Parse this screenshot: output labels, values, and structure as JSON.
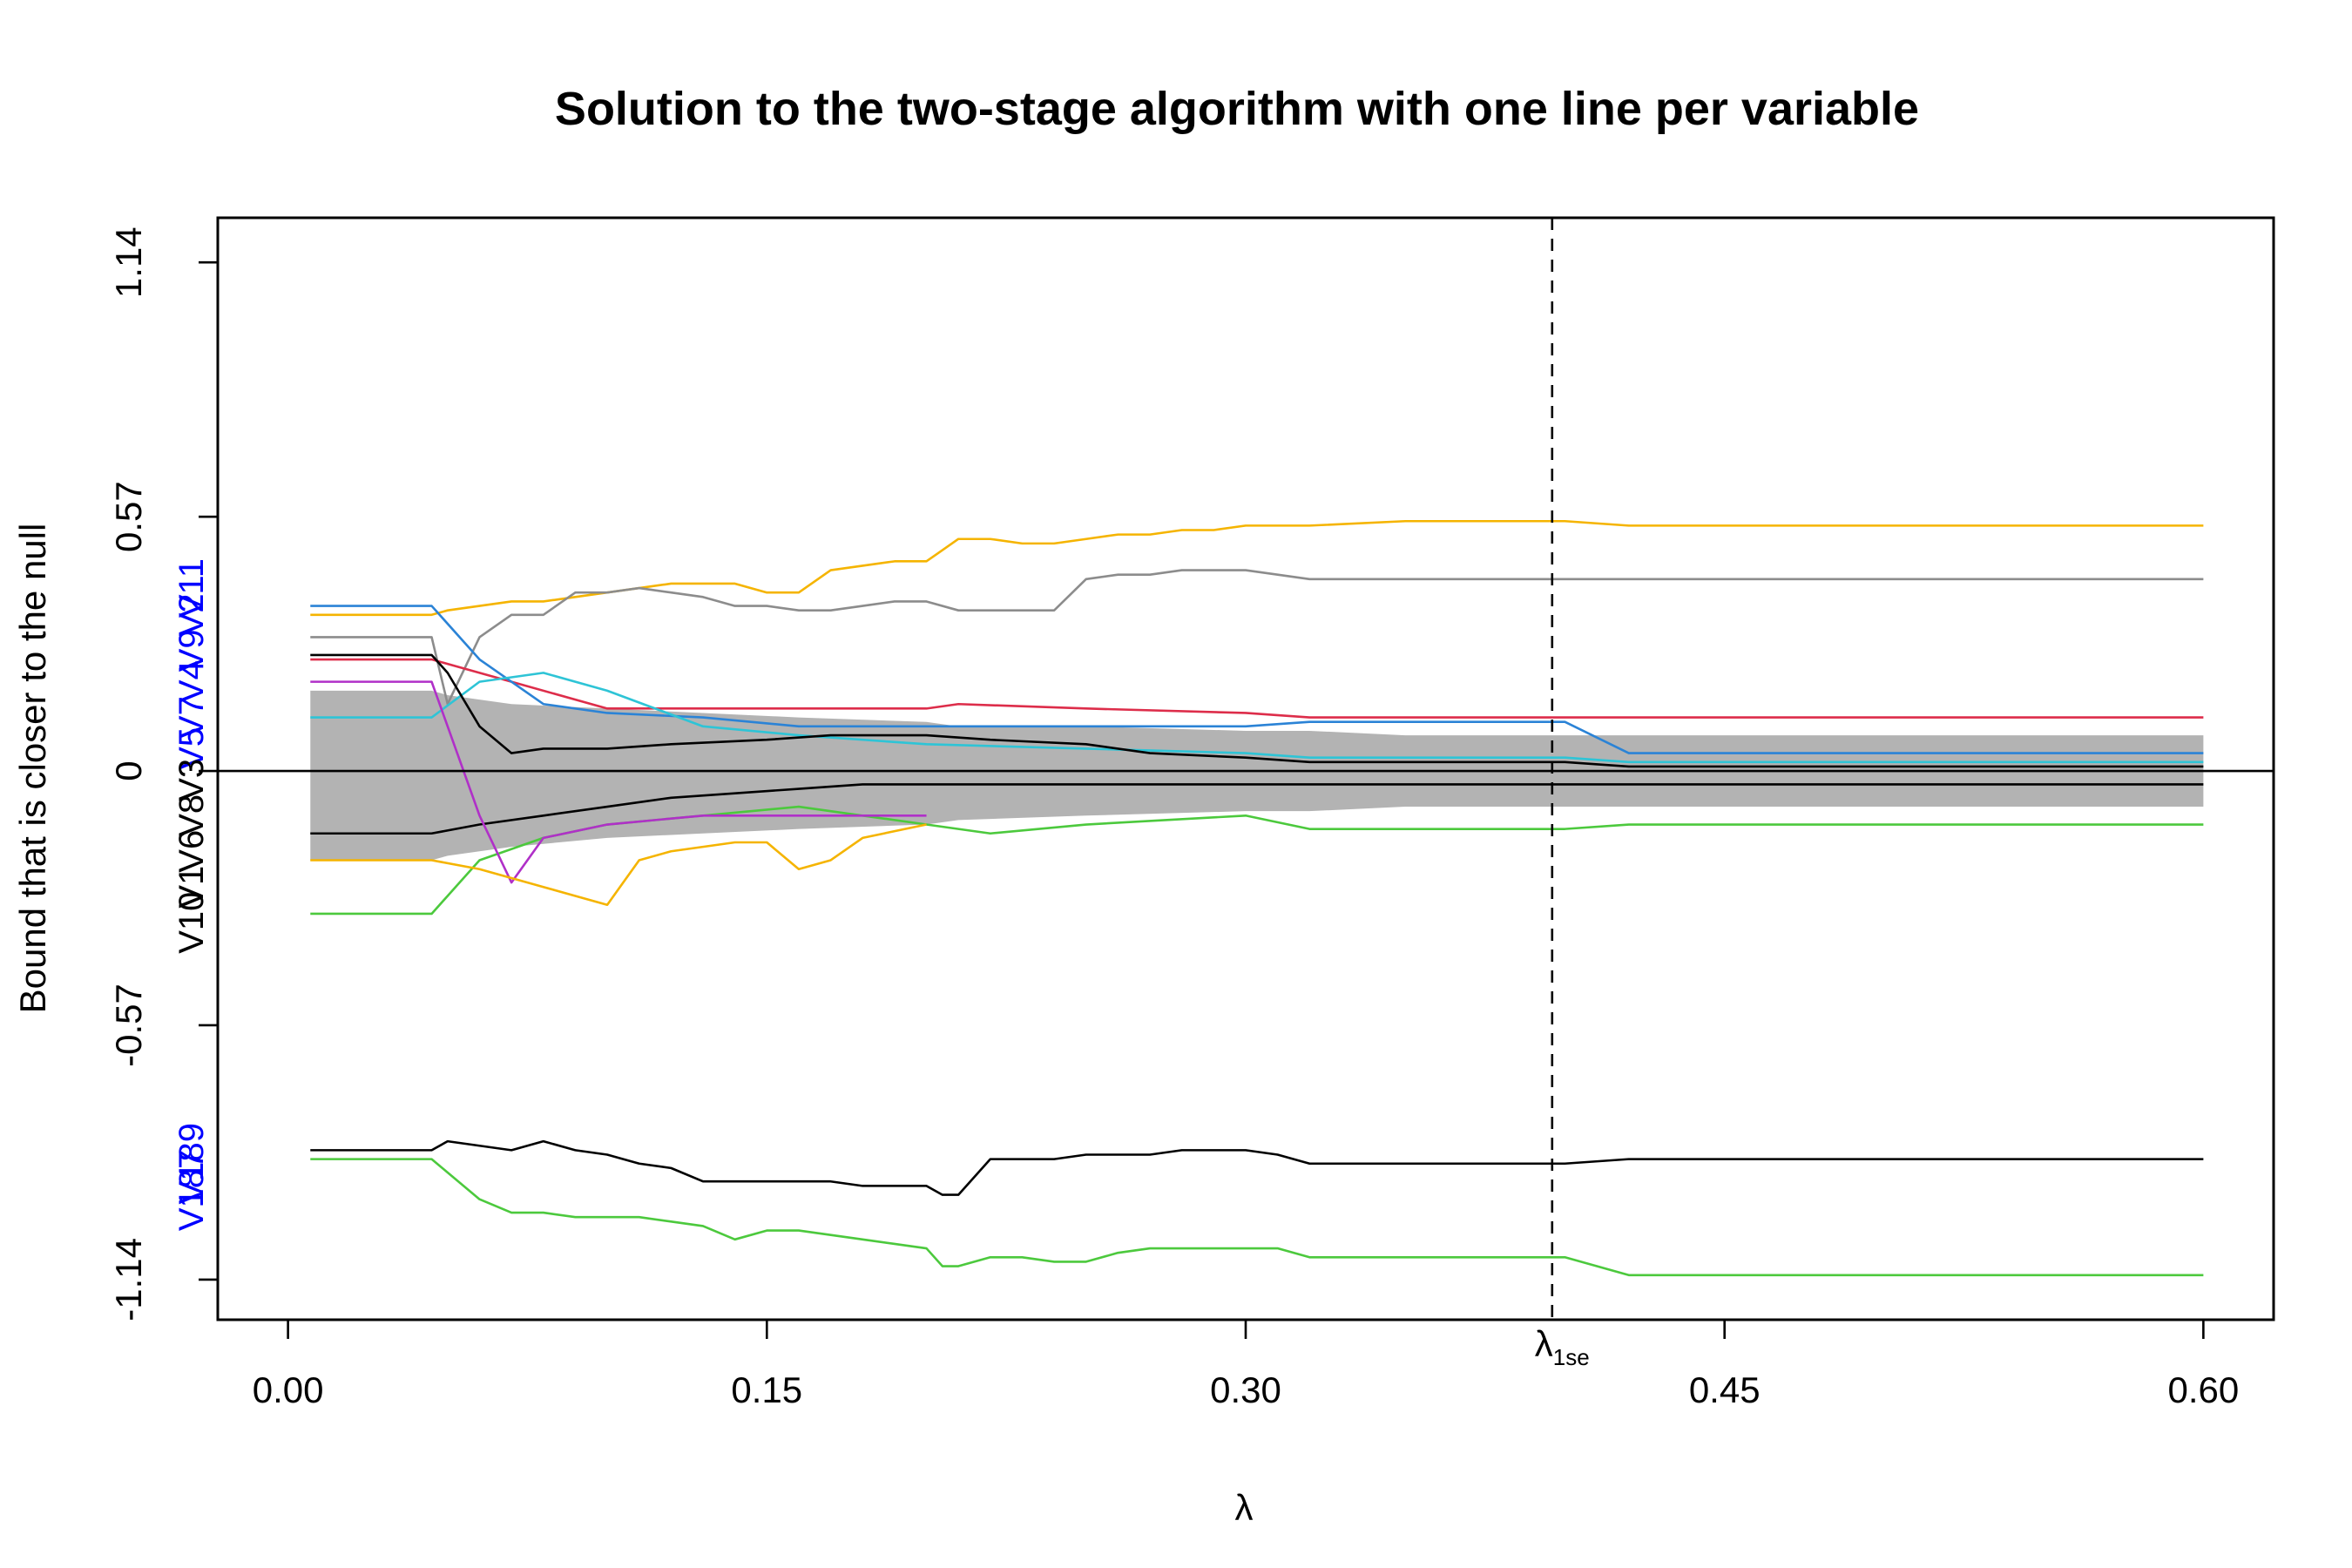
{
  "chart_data": {
    "type": "line",
    "title": "Solution to the two-stage algorithm with one line per variable",
    "xlabel": "λ",
    "ylabel": "Bound that is closer to the null",
    "xlim": [
      -0.022,
      0.622
    ],
    "ylim": [
      -1.23,
      1.24
    ],
    "x_ticks": [
      {
        "value": 0.0,
        "label": "0.00"
      },
      {
        "value": 0.15,
        "label": "0.15"
      },
      {
        "value": 0.3,
        "label": "0.30"
      },
      {
        "value": 0.45,
        "label": "0.45"
      },
      {
        "value": 0.6,
        "label": "0.60"
      }
    ],
    "y_ticks": [
      {
        "value": -1.14,
        "label": "-1.14"
      },
      {
        "value": -0.57,
        "label": "-0.57"
      },
      {
        "value": 0,
        "label": "0"
      },
      {
        "value": 0.57,
        "label": "0.57"
      },
      {
        "value": 1.14,
        "label": "1.14"
      }
    ],
    "vline": {
      "x": 0.396,
      "label": "λ",
      "label_sub": "1se"
    },
    "hline": {
      "y": 0
    },
    "band": {
      "x": [
        0.007,
        0.045,
        0.05,
        0.07,
        0.1,
        0.13,
        0.16,
        0.2,
        0.21,
        0.25,
        0.3,
        0.32,
        0.35,
        0.4,
        0.42,
        0.5,
        0.6
      ],
      "upper": [
        0.18,
        0.18,
        0.17,
        0.15,
        0.14,
        0.13,
        0.12,
        0.11,
        0.1,
        0.1,
        0.09,
        0.09,
        0.08,
        0.08,
        0.08,
        0.08,
        0.08
      ],
      "lower": [
        -0.2,
        -0.2,
        -0.19,
        -0.17,
        -0.15,
        -0.14,
        -0.13,
        -0.12,
        -0.11,
        -0.1,
        -0.09,
        -0.09,
        -0.08,
        -0.08,
        -0.08,
        -0.08,
        -0.08
      ]
    },
    "series": [
      {
        "color": "#f5b400",
        "x": [
          0.007,
          0.045,
          0.05,
          0.06,
          0.07,
          0.08,
          0.09,
          0.1,
          0.11,
          0.12,
          0.13,
          0.14,
          0.15,
          0.16,
          0.17,
          0.18,
          0.19,
          0.2,
          0.21,
          0.22,
          0.23,
          0.24,
          0.25,
          0.26,
          0.27,
          0.28,
          0.29,
          0.3,
          0.31,
          0.32,
          0.35,
          0.4,
          0.42,
          0.5,
          0.6
        ],
        "y": [
          0.35,
          0.35,
          0.36,
          0.37,
          0.38,
          0.38,
          0.39,
          0.4,
          0.41,
          0.42,
          0.42,
          0.42,
          0.4,
          0.4,
          0.45,
          0.46,
          0.47,
          0.47,
          0.52,
          0.52,
          0.51,
          0.51,
          0.52,
          0.53,
          0.53,
          0.54,
          0.54,
          0.55,
          0.55,
          0.55,
          0.56,
          0.56,
          0.55,
          0.55,
          0.55
        ]
      },
      {
        "color": "#8c8c8c",
        "x": [
          0.007,
          0.045,
          0.05,
          0.06,
          0.07,
          0.08,
          0.09,
          0.1,
          0.11,
          0.12,
          0.13,
          0.14,
          0.15,
          0.16,
          0.17,
          0.18,
          0.19,
          0.2,
          0.21,
          0.22,
          0.23,
          0.24,
          0.25,
          0.26,
          0.27,
          0.28,
          0.29,
          0.3,
          0.31,
          0.32,
          0.35,
          0.4,
          0.42,
          0.5,
          0.6
        ],
        "y": [
          0.3,
          0.3,
          0.15,
          0.3,
          0.35,
          0.35,
          0.4,
          0.4,
          0.41,
          0.4,
          0.39,
          0.37,
          0.37,
          0.36,
          0.36,
          0.37,
          0.38,
          0.38,
          0.36,
          0.36,
          0.36,
          0.36,
          0.43,
          0.44,
          0.44,
          0.45,
          0.45,
          0.45,
          0.44,
          0.43,
          0.43,
          0.43,
          0.43,
          0.43,
          0.43
        ]
      },
      {
        "color": "#dd2d4a",
        "x": [
          0.007,
          0.045,
          0.07,
          0.1,
          0.13,
          0.16,
          0.2,
          0.21,
          0.25,
          0.3,
          0.32,
          0.4,
          0.42,
          0.5,
          0.6
        ],
        "y": [
          0.25,
          0.25,
          0.2,
          0.14,
          0.14,
          0.14,
          0.14,
          0.15,
          0.14,
          0.13,
          0.12,
          0.12,
          0.12,
          0.12,
          0.12
        ]
      },
      {
        "color": "#2b83d6",
        "x": [
          0.007,
          0.045,
          0.06,
          0.08,
          0.1,
          0.13,
          0.16,
          0.2,
          0.25,
          0.3,
          0.32,
          0.4,
          0.42,
          0.5,
          0.6
        ],
        "y": [
          0.37,
          0.37,
          0.25,
          0.15,
          0.13,
          0.12,
          0.1,
          0.1,
          0.1,
          0.1,
          0.11,
          0.11,
          0.04,
          0.04,
          0.04
        ]
      },
      {
        "color": "#2ec4d6",
        "x": [
          0.007,
          0.045,
          0.06,
          0.08,
          0.1,
          0.13,
          0.16,
          0.2,
          0.25,
          0.3,
          0.32,
          0.4,
          0.42,
          0.5,
          0.6
        ],
        "y": [
          0.12,
          0.12,
          0.2,
          0.22,
          0.18,
          0.1,
          0.08,
          0.06,
          0.05,
          0.04,
          0.03,
          0.03,
          0.02,
          0.02,
          0.02
        ]
      },
      {
        "color": "#000000",
        "x": [
          0.007,
          0.045,
          0.05,
          0.06,
          0.07,
          0.08,
          0.1,
          0.12,
          0.15,
          0.17,
          0.2,
          0.22,
          0.25,
          0.27,
          0.3,
          0.32,
          0.35,
          0.4,
          0.42,
          0.5,
          0.6
        ],
        "y": [
          0.26,
          0.26,
          0.22,
          0.1,
          0.04,
          0.05,
          0.05,
          0.06,
          0.07,
          0.08,
          0.08,
          0.07,
          0.06,
          0.04,
          0.03,
          0.02,
          0.02,
          0.02,
          0.01,
          0.01,
          0.01
        ]
      },
      {
        "color": "#000000",
        "x": [
          0.007,
          0.045,
          0.06,
          0.08,
          0.1,
          0.12,
          0.14,
          0.16,
          0.18,
          0.2,
          0.22,
          0.25,
          0.28,
          0.3,
          0.32,
          0.35,
          0.4,
          0.42,
          0.5,
          0.6
        ],
        "y": [
          -0.14,
          -0.14,
          -0.12,
          -0.1,
          -0.08,
          -0.06,
          -0.05,
          -0.04,
          -0.03,
          -0.03,
          -0.03,
          -0.03,
          -0.03,
          -0.03,
          -0.03,
          -0.03,
          -0.03,
          -0.03,
          -0.03,
          -0.03
        ]
      },
      {
        "color": "#4cc93d",
        "x": [
          0.007,
          0.045,
          0.05,
          0.06,
          0.08,
          0.1,
          0.13,
          0.16,
          0.2,
          0.22,
          0.25,
          0.3,
          0.32,
          0.35,
          0.4,
          0.42,
          0.5,
          0.6
        ],
        "y": [
          -0.32,
          -0.32,
          -0.28,
          -0.2,
          -0.15,
          -0.12,
          -0.1,
          -0.08,
          -0.12,
          -0.14,
          -0.12,
          -0.1,
          -0.13,
          -0.13,
          -0.13,
          -0.12,
          -0.12,
          -0.12
        ]
      },
      {
        "color": "#b030c8",
        "x": [
          0.007,
          0.045,
          0.05,
          0.06,
          0.07,
          0.08,
          0.1,
          0.13,
          0.16,
          0.2
        ],
        "y": [
          0.2,
          0.2,
          0.1,
          -0.1,
          -0.25,
          -0.15,
          -0.12,
          -0.1,
          -0.1,
          -0.1
        ]
      },
      {
        "color": "#f5b400",
        "x": [
          0.007,
          0.045,
          0.06,
          0.07,
          0.08,
          0.09,
          0.1,
          0.11,
          0.12,
          0.13,
          0.14,
          0.15,
          0.16,
          0.17,
          0.18,
          0.2
        ],
        "y": [
          -0.2,
          -0.2,
          -0.22,
          -0.24,
          -0.26,
          -0.28,
          -0.3,
          -0.2,
          -0.18,
          -0.17,
          -0.16,
          -0.16,
          -0.22,
          -0.2,
          -0.15,
          -0.12
        ]
      },
      {
        "color": "#000000",
        "x": [
          0.007,
          0.045,
          0.05,
          0.06,
          0.07,
          0.08,
          0.09,
          0.1,
          0.11,
          0.12,
          0.13,
          0.14,
          0.15,
          0.16,
          0.17,
          0.18,
          0.19,
          0.2,
          0.205,
          0.21,
          0.22,
          0.23,
          0.24,
          0.25,
          0.26,
          0.27,
          0.28,
          0.29,
          0.3,
          0.31,
          0.32,
          0.35,
          0.4,
          0.42,
          0.5,
          0.6
        ],
        "y": [
          -0.85,
          -0.85,
          -0.83,
          -0.84,
          -0.85,
          -0.83,
          -0.85,
          -0.86,
          -0.88,
          -0.89,
          -0.92,
          -0.92,
          -0.92,
          -0.92,
          -0.92,
          -0.93,
          -0.93,
          -0.93,
          -0.95,
          -0.95,
          -0.87,
          -0.87,
          -0.87,
          -0.86,
          -0.86,
          -0.86,
          -0.85,
          -0.85,
          -0.85,
          -0.86,
          -0.88,
          -0.88,
          -0.88,
          -0.87,
          -0.87,
          -0.87
        ]
      },
      {
        "color": "#4cc93d",
        "x": [
          0.007,
          0.045,
          0.05,
          0.06,
          0.07,
          0.08,
          0.09,
          0.1,
          0.11,
          0.12,
          0.13,
          0.14,
          0.15,
          0.16,
          0.17,
          0.18,
          0.19,
          0.2,
          0.205,
          0.21,
          0.22,
          0.23,
          0.24,
          0.25,
          0.26,
          0.27,
          0.28,
          0.29,
          0.3,
          0.31,
          0.32,
          0.35,
          0.4,
          0.42,
          0.5,
          0.6
        ],
        "y": [
          -0.87,
          -0.87,
          -0.9,
          -0.96,
          -0.99,
          -0.99,
          -1.0,
          -1.0,
          -1.0,
          -1.01,
          -1.02,
          -1.05,
          -1.03,
          -1.03,
          -1.04,
          -1.05,
          -1.06,
          -1.07,
          -1.11,
          -1.11,
          -1.09,
          -1.09,
          -1.1,
          -1.1,
          -1.08,
          -1.07,
          -1.07,
          -1.07,
          -1.07,
          -1.07,
          -1.09,
          -1.09,
          -1.09,
          -1.13,
          -1.13,
          -1.13
        ]
      }
    ],
    "variable_labels": [
      {
        "text": "V11",
        "y": 0.41,
        "color": "#0000ff"
      },
      {
        "text": "V2",
        "y": 0.35,
        "color": "#0000ff"
      },
      {
        "text": "V9",
        "y": 0.27,
        "color": "#0000ff"
      },
      {
        "text": "V4",
        "y": 0.2,
        "color": "#0000ff"
      },
      {
        "text": "V7",
        "y": 0.12,
        "color": "#0000ff"
      },
      {
        "text": "V5",
        "y": 0.05,
        "color": "#0000ff"
      },
      {
        "text": "V3",
        "y": -0.02,
        "color": "#000000"
      },
      {
        "text": "V8",
        "y": -0.1,
        "color": "#000000"
      },
      {
        "text": "V6",
        "y": -0.18,
        "color": "#000000"
      },
      {
        "text": "V1",
        "y": -0.26,
        "color": "#000000"
      },
      {
        "text": "V10",
        "y": -0.34,
        "color": "#000000"
      },
      {
        "text": "V189",
        "y": -0.88,
        "color": "#0000ff"
      },
      {
        "text": "V187",
        "y": -0.94,
        "color": "#0000ff"
      }
    ]
  }
}
